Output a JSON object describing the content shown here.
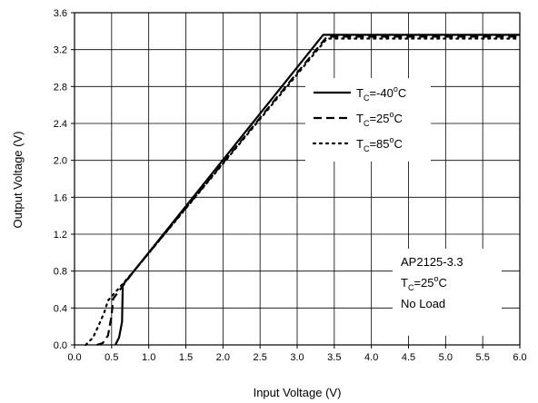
{
  "chart_data": {
    "type": "line",
    "xlabel": "Input Voltage (V)",
    "ylabel": "Output Voltage (V)",
    "xlim": [
      0.0,
      6.0
    ],
    "ylim": [
      0.0,
      3.6
    ],
    "x_ticks": [
      "0.0",
      "0.5",
      "1.0",
      "1.5",
      "2.0",
      "2.5",
      "3.0",
      "3.5",
      "4.0",
      "4.5",
      "5.0",
      "5.5",
      "6.0"
    ],
    "y_ticks": [
      "0.0",
      "0.4",
      "0.8",
      "1.2",
      "1.6",
      "2.0",
      "2.4",
      "2.8",
      "3.2",
      "3.6"
    ],
    "grid": true,
    "legend_position": "top-right",
    "series": [
      {
        "name_main": "T",
        "name_sub": "C",
        "name_rest": "=-40",
        "name_sup": "o",
        "name_unit": "C",
        "style": "solid",
        "points": [
          [
            0.55,
            0.0
          ],
          [
            0.6,
            0.08
          ],
          [
            0.64,
            0.25
          ],
          [
            0.65,
            0.65
          ],
          [
            0.8,
            0.8
          ],
          [
            3.35,
            3.36
          ],
          [
            6.0,
            3.36
          ]
        ]
      },
      {
        "name_main": "T",
        "name_sub": "C",
        "name_rest": "=25",
        "name_sup": "o",
        "name_unit": "C",
        "style": "dashed",
        "points": [
          [
            0.3,
            0.0
          ],
          [
            0.38,
            0.02
          ],
          [
            0.45,
            0.1
          ],
          [
            0.5,
            0.32
          ],
          [
            0.52,
            0.5
          ],
          [
            0.8,
            0.8
          ],
          [
            3.4,
            3.34
          ],
          [
            6.0,
            3.34
          ]
        ]
      },
      {
        "name_main": "T",
        "name_sub": "C",
        "name_rest": "=85",
        "name_sup": "o",
        "name_unit": "C",
        "style": "dotted",
        "points": [
          [
            0.15,
            0.0
          ],
          [
            0.25,
            0.08
          ],
          [
            0.33,
            0.22
          ],
          [
            0.4,
            0.35
          ],
          [
            0.45,
            0.48
          ],
          [
            0.8,
            0.8
          ],
          [
            3.4,
            3.32
          ],
          [
            6.0,
            3.32
          ]
        ]
      }
    ],
    "annotation": {
      "line1": "AP2125-3.3",
      "line2_main": "T",
      "line2_sub": "C",
      "line2_rest": "=25",
      "line2_sup": "o",
      "line2_unit": "C",
      "line3": "No Load"
    }
  }
}
